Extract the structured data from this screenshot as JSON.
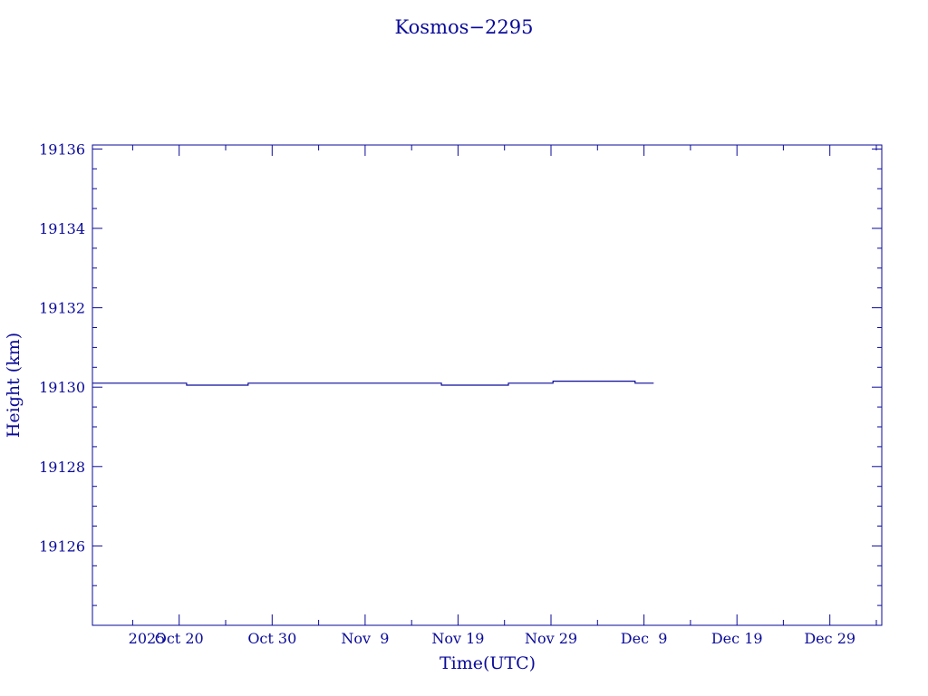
{
  "chart_data": {
    "type": "line",
    "title": "Kosmos−2295",
    "xlabel": "Time(UTC)",
    "ylabel": "Height (km)",
    "color": "#0a0a9a",
    "grid": false,
    "ylim": [
      19124.0,
      19136.1
    ],
    "yticks": [
      19126,
      19128,
      19130,
      19132,
      19134,
      19136
    ],
    "ytick_labels": [
      "19126",
      "19128",
      "19130",
      "19132",
      "19134",
      "19136"
    ],
    "xlim": [
      "2025-10-10T16:00",
      "2026-01-03T14:00"
    ],
    "xticks": [
      "2025-10-20",
      "2025-10-30",
      "2025-11-09",
      "2025-11-19",
      "2025-11-29",
      "2025-12-09",
      "2025-12-19",
      "2025-12-29"
    ],
    "xtick_labels": [
      "Oct 20",
      "Oct 30",
      "Nov  9",
      "Nov 19",
      "Nov 29",
      "Dec  9",
      "Dec 19",
      "Dec 29"
    ],
    "xlabel_prefix": "2025",
    "series": [
      {
        "x": [
          "2025-10-10T16:00",
          "2025-10-20T19:00",
          "2025-10-20T19:00",
          "2025-10-27T10:00",
          "2025-10-27T10:00",
          "2025-11-17T05:00",
          "2025-11-17T05:00",
          "2025-11-24T10:00",
          "2025-11-24T10:00",
          "2025-11-29T05:00",
          "2025-11-29T05:00",
          "2025-12-08T01:00",
          "2025-12-08T01:00",
          "2025-12-10T01:00"
        ],
        "y": [
          19130.1,
          19130.1,
          19130.05,
          19130.05,
          19130.1,
          19130.1,
          19130.05,
          19130.05,
          19130.1,
          19130.1,
          19130.15,
          19130.15,
          19130.1,
          19130.1
        ]
      }
    ]
  }
}
